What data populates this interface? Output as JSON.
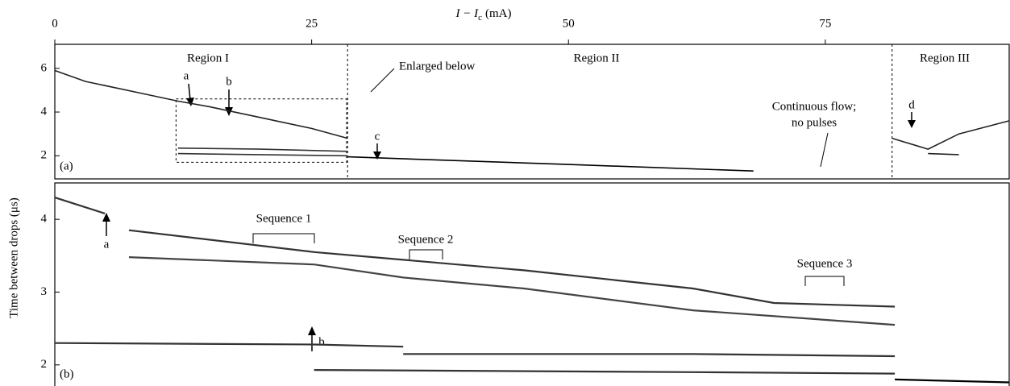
{
  "chart_data": [
    {
      "type": "line",
      "xlabel": "I − I",
      "xlabel_sub": "c",
      "xlabel_unit": "(mA)",
      "ylabel": "Time between drops (μs)",
      "xlim": [
        0,
        92.9
      ],
      "ylim": [
        0.94,
        7.1
      ],
      "xticks": [
        0,
        25,
        50,
        75
      ],
      "yticks": [
        2,
        4,
        6
      ],
      "region_bounds": [
        28.5,
        81.5
      ],
      "enlarged_box": {
        "x": [
          11.8,
          28.4
        ],
        "y": [
          1.7,
          4.6
        ]
      },
      "annotations": [
        "Region I",
        "Region II",
        "Region III",
        "Enlarged below",
        "Continuous flow;",
        "no pulses",
        "a",
        "b",
        "c",
        "d",
        "(a)"
      ],
      "series": [
        {
          "color": "#222",
          "x": [
            0,
            3,
            8,
            12,
            15,
            20,
            25,
            28.5
          ],
          "values": [
            5.9,
            5.4,
            4.9,
            4.5,
            4.25,
            3.75,
            3.25,
            2.8
          ]
        },
        {
          "color": "#333",
          "x": [
            12,
            20,
            28.5
          ],
          "values": [
            2.35,
            2.3,
            2.2
          ]
        },
        {
          "color": "#333",
          "x": [
            12,
            20,
            28.5
          ],
          "values": [
            2.1,
            2.05,
            2.0
          ]
        },
        {
          "color": "#000",
          "x": [
            28.5,
            50,
            68
          ],
          "values": [
            1.95,
            1.6,
            1.3
          ]
        },
        {
          "color": "#222",
          "x": [
            81.5,
            85,
            88,
            92.9
          ],
          "values": [
            2.8,
            2.3,
            3.0,
            3.6
          ]
        },
        {
          "color": "#222",
          "x": [
            85,
            88
          ],
          "values": [
            2.1,
            2.05
          ]
        }
      ]
    },
    {
      "type": "line",
      "xlim": [
        11.8,
        28.4
      ],
      "ylim": [
        1.71,
        4.5
      ],
      "yticks": [
        2,
        3,
        4
      ],
      "annotations": [
        "a",
        "b",
        "Sequence 1",
        "Sequence 2",
        "Sequence 3",
        "(b)"
      ],
      "series": [
        {
          "color": "#333",
          "x": [
            11.8,
            12.67
          ],
          "values": [
            4.3,
            4.08
          ]
        },
        {
          "color": "#333",
          "x": [
            13.09,
            16.31,
            19.96,
            22.9,
            24.31,
            26.41
          ],
          "values": [
            3.85,
            3.55,
            3.3,
            3.05,
            2.85,
            2.8
          ]
        },
        {
          "color": "#444",
          "x": [
            13.09,
            16.31,
            17.86,
            19.96,
            22.9,
            26.41
          ],
          "values": [
            3.48,
            3.38,
            3.2,
            3.05,
            2.75,
            2.55
          ]
        },
        {
          "color": "#333",
          "x": [
            11.8,
            16.31,
            17.86
          ],
          "values": [
            2.3,
            2.28,
            2.25
          ]
        },
        {
          "color": "#333",
          "x": [
            17.86,
            22.9,
            26.41
          ],
          "values": [
            2.15,
            2.15,
            2.12
          ]
        },
        {
          "color": "#333",
          "x": [
            16.31,
            22.9,
            26.41
          ],
          "values": [
            1.93,
            1.9,
            1.88
          ]
        },
        {
          "color": "#000",
          "x": [
            26.41,
            28.4
          ],
          "values": [
            1.8,
            1.76
          ]
        }
      ]
    }
  ]
}
